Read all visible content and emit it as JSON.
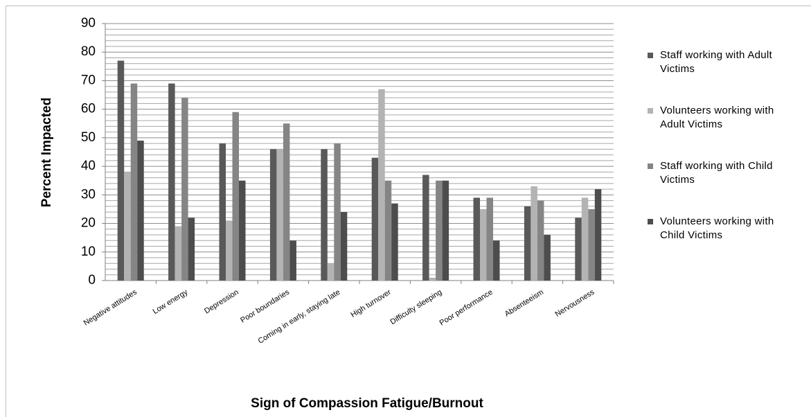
{
  "chart_data": {
    "type": "bar",
    "x_label": "Sign of Compassion Fatigue/Burnout",
    "y_label": "Percent Impacted",
    "categories": [
      "Negative attitudes",
      "Low energy",
      "Depression",
      "Poor boundaries",
      "Coming in early, staying late",
      "High turnover",
      "Difficulty sleeping",
      "Poor performance",
      "Absenteeism",
      "Nervousness"
    ],
    "series": [
      {
        "name": "Staff working with Adult Victims",
        "color": "#595959",
        "values": [
          77,
          69,
          48,
          46,
          46,
          43,
          37,
          29,
          26,
          22
        ]
      },
      {
        "name": "Volunteers working with Adult Victims",
        "color": "#b3b3b3",
        "values": [
          38,
          19,
          21,
          46,
          6,
          67,
          1,
          25,
          33,
          29
        ]
      },
      {
        "name": "Staff working with Child Victims",
        "color": "#858585",
        "values": [
          69,
          64,
          59,
          55,
          48,
          35,
          35,
          29,
          28,
          25
        ]
      },
      {
        "name": "Volunteers working with Child Victims",
        "color": "#4d4d4d",
        "values": [
          49,
          22,
          35,
          14,
          24,
          27,
          35,
          14,
          16,
          32
        ]
      }
    ],
    "ylim": [
      0,
      90
    ],
    "yticks": [
      0,
      10,
      20,
      30,
      40,
      50,
      60,
      70,
      80,
      90
    ],
    "minor_yticks": [
      2,
      4,
      6,
      8,
      12,
      14,
      16,
      18,
      22,
      24,
      26,
      28,
      32,
      34,
      36,
      38,
      42,
      44,
      46,
      48,
      52,
      54,
      56,
      58,
      62,
      64,
      66,
      68,
      72,
      74,
      76,
      78,
      82,
      84,
      86,
      88
    ],
    "grid": true,
    "legend": "right"
  }
}
